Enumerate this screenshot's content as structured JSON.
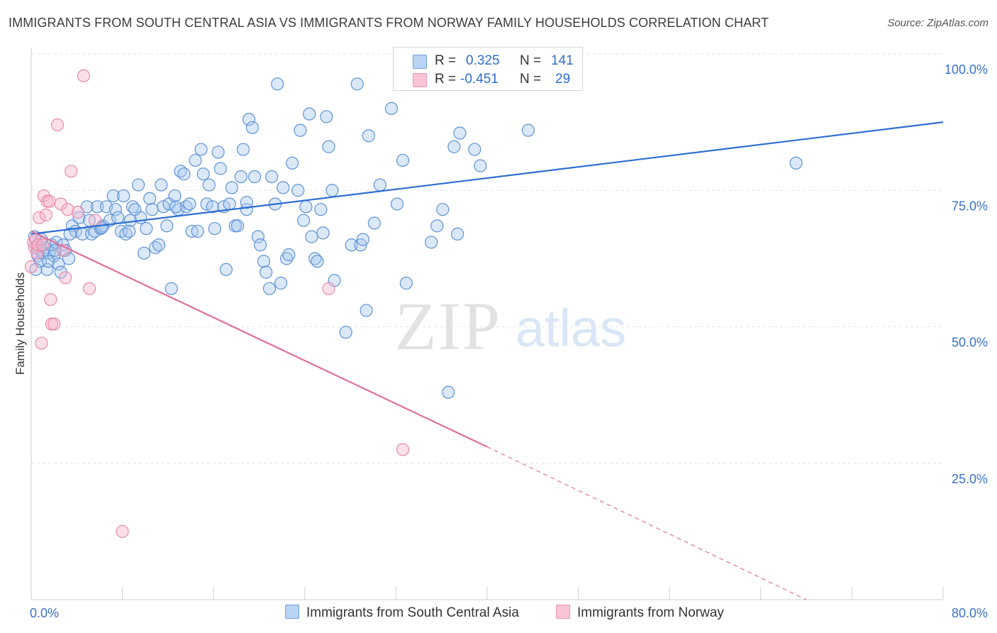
{
  "title": "IMMIGRANTS FROM SOUTH CENTRAL ASIA VS IMMIGRANTS FROM NORWAY FAMILY HOUSEHOLDS CORRELATION CHART",
  "source": "Source: ZipAtlas.com",
  "watermark": {
    "zip": "ZIP",
    "atlas": "atlas"
  },
  "legend": {
    "r_label": "R =",
    "n_label": "N =",
    "rows": [
      {
        "r": "0.325",
        "n": "141",
        "color": "#b9d3f3"
      },
      {
        "r": "-0.451",
        "n": "29",
        "color": "#f9c5d5"
      }
    ]
  },
  "bottom_legend": {
    "blue": "Immigrants from South Central Asia",
    "pink": "Immigrants from Norway"
  },
  "colors": {
    "blue_fill": "#a9c8ee",
    "blue_stroke": "#5e93d6",
    "blue_line": "#2f6fd1",
    "pink_fill": "#f6b6ca",
    "pink_stroke": "#e78aaa",
    "pink_line": "#e0709a",
    "grid": "#e3e3e3",
    "tick_text": "#3a72c9"
  },
  "chart_data": {
    "type": "scatter",
    "title": "IMMIGRANTS FROM SOUTH CENTRAL ASIA VS IMMIGRANTS FROM NORWAY FAMILY HOUSEHOLDS CORRELATION CHART",
    "xlabel": "",
    "ylabel": "Family Households",
    "xlim": [
      0,
      80
    ],
    "ylim": [
      0,
      100
    ],
    "x_tick_labels": [
      "0.0%",
      "80.0%"
    ],
    "y_ticks": [
      25,
      50,
      75,
      100
    ],
    "y_tick_labels": [
      "25.0%",
      "50.0%",
      "75.0%",
      "100.0%"
    ],
    "grid": true,
    "legend_position": "top-center",
    "series": [
      {
        "name": "Immigrants from South Central Asia",
        "r": 0.325,
        "n": 141,
        "trend": {
          "x": [
            0,
            80
          ],
          "y": [
            67.0,
            87.5
          ],
          "style": "solid"
        },
        "points": [
          [
            0.3,
            66.5
          ],
          [
            0.5,
            64.5
          ],
          [
            0.6,
            63.0
          ],
          [
            0.8,
            62.0
          ],
          [
            1.0,
            63.5
          ],
          [
            1.2,
            64.5
          ],
          [
            1.4,
            60.5
          ],
          [
            1.6,
            63.5
          ],
          [
            1.8,
            65.0
          ],
          [
            2.0,
            63.0
          ],
          [
            2.2,
            65.5
          ],
          [
            2.4,
            61.5
          ],
          [
            2.6,
            60.0
          ],
          [
            2.8,
            65.0
          ],
          [
            3.0,
            64.0
          ],
          [
            3.3,
            62.5
          ],
          [
            3.6,
            68.5
          ],
          [
            3.9,
            67.5
          ],
          [
            4.2,
            70.0
          ],
          [
            4.5,
            67.0
          ],
          [
            4.9,
            72.0
          ],
          [
            5.1,
            69.5
          ],
          [
            5.3,
            67.0
          ],
          [
            5.6,
            67.5
          ],
          [
            5.8,
            72.0
          ],
          [
            6.1,
            68.0
          ],
          [
            6.3,
            68.5
          ],
          [
            6.6,
            72.0
          ],
          [
            6.9,
            69.5
          ],
          [
            7.2,
            74.0
          ],
          [
            7.4,
            71.5
          ],
          [
            7.6,
            70.0
          ],
          [
            7.9,
            67.5
          ],
          [
            8.1,
            74.0
          ],
          [
            8.3,
            67.0
          ],
          [
            8.6,
            67.5
          ],
          [
            8.9,
            72.0
          ],
          [
            9.1,
            71.5
          ],
          [
            9.4,
            76.0
          ],
          [
            9.6,
            70.0
          ],
          [
            9.9,
            63.5
          ],
          [
            10.1,
            68.0
          ],
          [
            10.4,
            73.5
          ],
          [
            10.6,
            71.5
          ],
          [
            10.9,
            64.5
          ],
          [
            11.2,
            65.0
          ],
          [
            11.4,
            76.0
          ],
          [
            11.6,
            72.0
          ],
          [
            11.9,
            68.5
          ],
          [
            12.1,
            72.5
          ],
          [
            12.3,
            57.0
          ],
          [
            12.6,
            74.0
          ],
          [
            12.9,
            71.5
          ],
          [
            13.1,
            78.5
          ],
          [
            13.4,
            78.0
          ],
          [
            13.6,
            72.0
          ],
          [
            13.9,
            72.5
          ],
          [
            14.1,
            67.5
          ],
          [
            14.4,
            80.5
          ],
          [
            14.6,
            67.5
          ],
          [
            14.9,
            82.5
          ],
          [
            15.1,
            78.0
          ],
          [
            15.4,
            72.5
          ],
          [
            15.6,
            76.0
          ],
          [
            15.9,
            72.0
          ],
          [
            16.1,
            68.0
          ],
          [
            16.4,
            82.0
          ],
          [
            16.6,
            79.0
          ],
          [
            16.9,
            72.0
          ],
          [
            17.1,
            60.5
          ],
          [
            17.4,
            72.5
          ],
          [
            17.6,
            75.5
          ],
          [
            17.9,
            68.5
          ],
          [
            18.1,
            68.5
          ],
          [
            18.4,
            77.5
          ],
          [
            18.6,
            82.5
          ],
          [
            18.9,
            71.5
          ],
          [
            19.1,
            88.0
          ],
          [
            19.4,
            86.5
          ],
          [
            19.6,
            77.5
          ],
          [
            19.9,
            66.5
          ],
          [
            20.1,
            65.0
          ],
          [
            20.4,
            62.0
          ],
          [
            20.6,
            60.0
          ],
          [
            20.9,
            57.0
          ],
          [
            21.1,
            77.5
          ],
          [
            21.4,
            72.5
          ],
          [
            21.6,
            94.5
          ],
          [
            21.9,
            58.0
          ],
          [
            22.1,
            75.5
          ],
          [
            22.4,
            62.5
          ],
          [
            22.9,
            80.0
          ],
          [
            23.4,
            75.0
          ],
          [
            23.6,
            86.0
          ],
          [
            23.9,
            69.5
          ],
          [
            24.1,
            72.0
          ],
          [
            24.4,
            89.0
          ],
          [
            24.6,
            66.5
          ],
          [
            24.9,
            62.5
          ],
          [
            25.1,
            62.0
          ],
          [
            25.4,
            71.5
          ],
          [
            25.9,
            88.5
          ],
          [
            26.1,
            83.0
          ],
          [
            26.4,
            75.0
          ],
          [
            26.6,
            58.5
          ],
          [
            27.6,
            49.0
          ],
          [
            28.1,
            65.0
          ],
          [
            28.6,
            94.5
          ],
          [
            28.9,
            65.0
          ],
          [
            29.1,
            66.0
          ],
          [
            29.4,
            53.0
          ],
          [
            29.6,
            85.0
          ],
          [
            30.1,
            69.0
          ],
          [
            30.6,
            76.0
          ],
          [
            31.6,
            90.0
          ],
          [
            32.1,
            72.5
          ],
          [
            32.6,
            80.5
          ],
          [
            32.9,
            58.0
          ],
          [
            35.1,
            65.5
          ],
          [
            35.6,
            68.5
          ],
          [
            36.1,
            71.5
          ],
          [
            36.6,
            38.0
          ],
          [
            37.1,
            83.0
          ],
          [
            37.4,
            67.0
          ],
          [
            37.6,
            85.5
          ],
          [
            38.9,
            82.5
          ],
          [
            39.4,
            79.5
          ],
          [
            41.6,
            97.0
          ],
          [
            43.6,
            86.0
          ],
          [
            67.1,
            80.0
          ],
          [
            0.4,
            60.5
          ],
          [
            0.9,
            66.0
          ],
          [
            1.5,
            62.0
          ],
          [
            2.1,
            64.0
          ],
          [
            3.4,
            67.0
          ],
          [
            6.2,
            68.2
          ],
          [
            8.7,
            69.5
          ],
          [
            12.7,
            72.0
          ],
          [
            18.9,
            72.8
          ],
          [
            22.6,
            63.2
          ],
          [
            25.6,
            67.2
          ]
        ]
      },
      {
        "name": "Immigrants from Norway",
        "r": -0.451,
        "n": 29,
        "trend": {
          "x": [
            0,
            40
          ],
          "y": [
            67.5,
            28.0
          ],
          "dashed_to": [
            68,
            0
          ],
          "style": "solid-then-dashed"
        },
        "points": [
          [
            0.0,
            61.0
          ],
          [
            0.2,
            65.5
          ],
          [
            0.3,
            64.5
          ],
          [
            0.4,
            66.0
          ],
          [
            0.5,
            63.5
          ],
          [
            0.6,
            65.0
          ],
          [
            0.7,
            70.0
          ],
          [
            0.9,
            47.0
          ],
          [
            1.1,
            74.0
          ],
          [
            1.3,
            70.5
          ],
          [
            1.4,
            73.0
          ],
          [
            1.6,
            73.0
          ],
          [
            1.7,
            55.0
          ],
          [
            1.8,
            50.5
          ],
          [
            2.0,
            50.5
          ],
          [
            2.3,
            87.0
          ],
          [
            2.6,
            72.5
          ],
          [
            2.8,
            64.0
          ],
          [
            3.0,
            59.0
          ],
          [
            3.5,
            78.5
          ],
          [
            4.1,
            71.0
          ],
          [
            4.6,
            96.0
          ],
          [
            5.1,
            57.0
          ],
          [
            5.6,
            69.5
          ],
          [
            8.0,
            12.5
          ],
          [
            26.1,
            57.0
          ],
          [
            32.6,
            27.5
          ],
          [
            3.2,
            71.5
          ],
          [
            1.0,
            65.0
          ]
        ]
      }
    ]
  }
}
